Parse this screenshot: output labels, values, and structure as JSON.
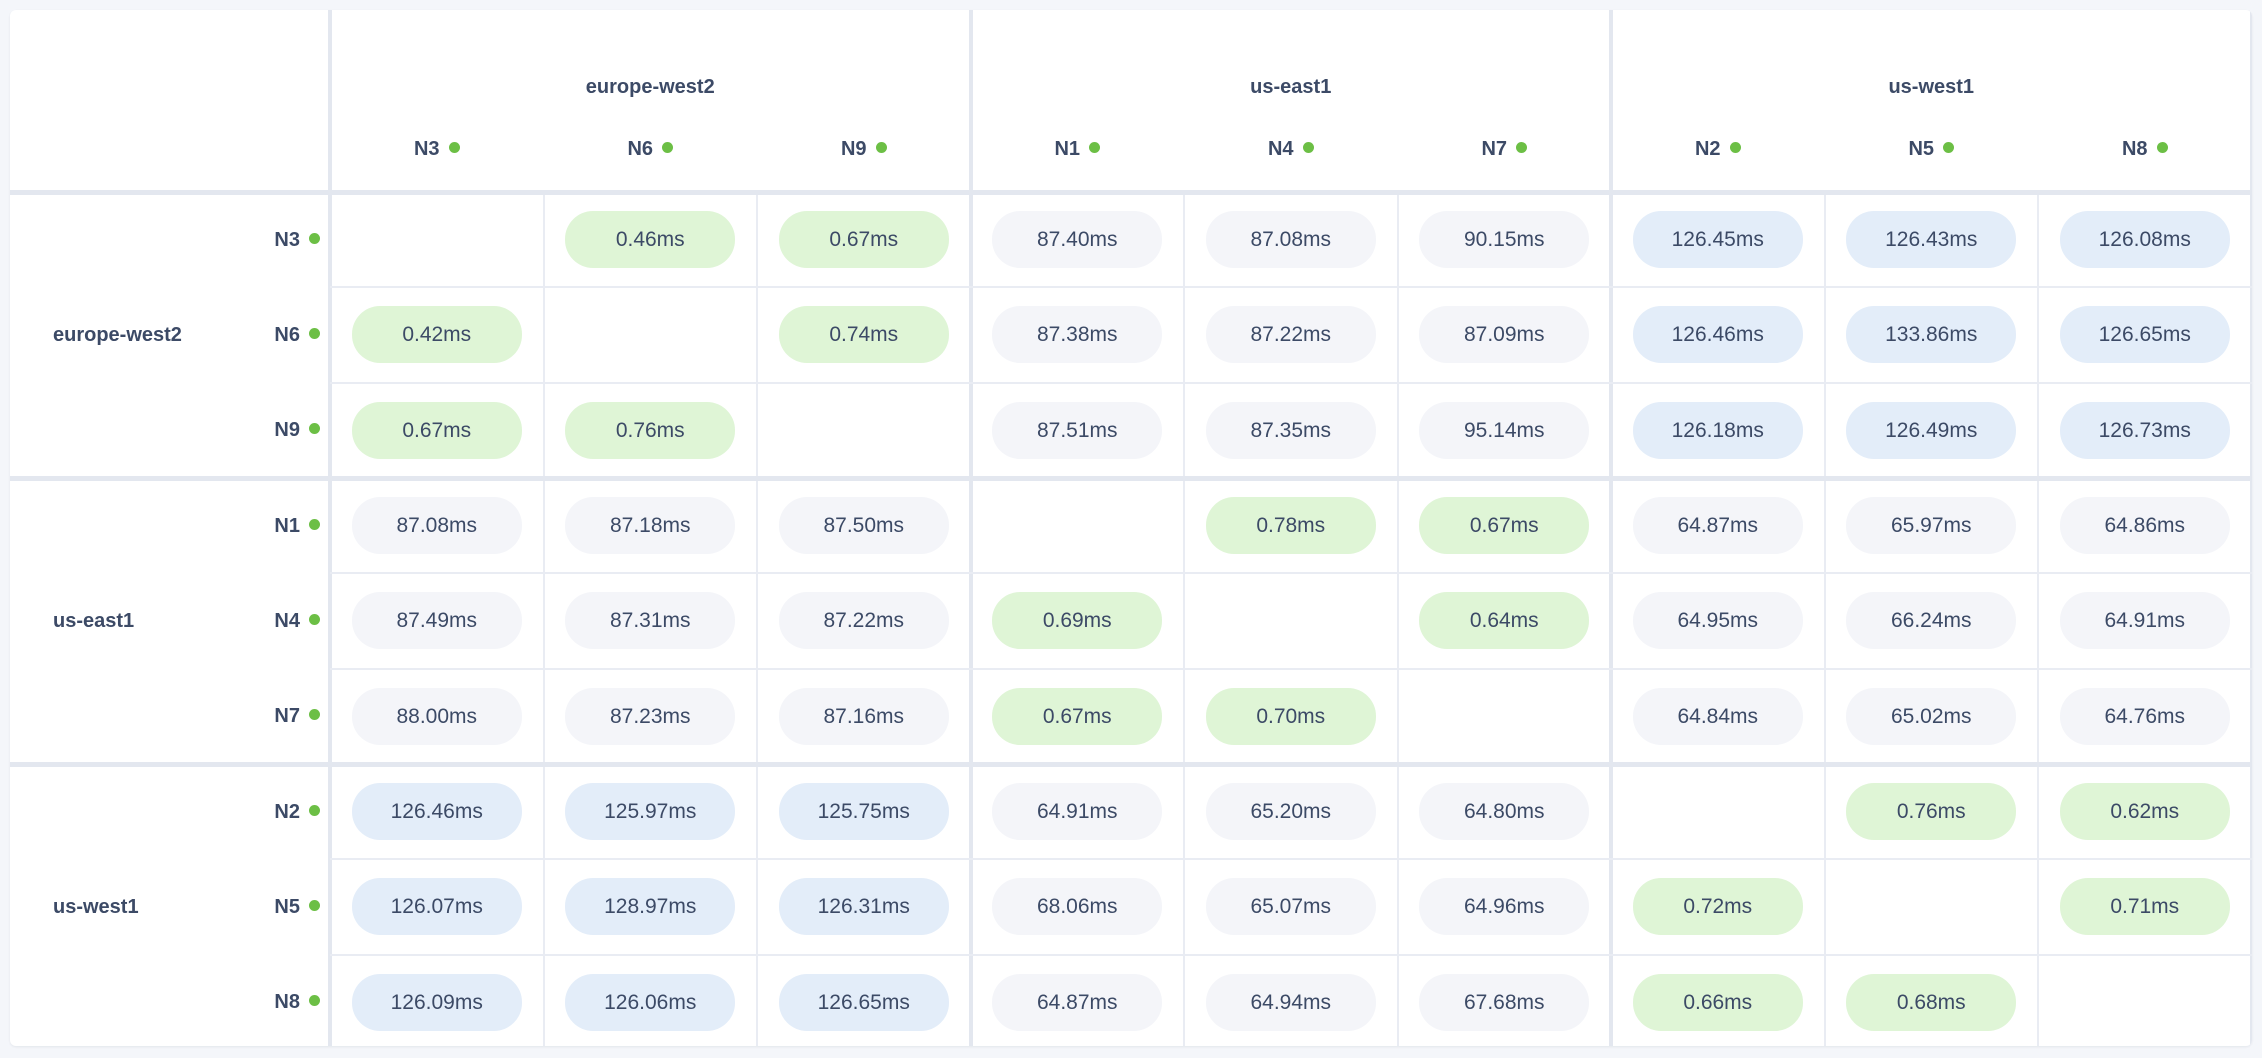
{
  "colors": {
    "status_online": "#6cbf45",
    "intra_region": "#dff5d6",
    "inter_region_mid": "#f4f5f9",
    "inter_region_far": "#e3edf9",
    "text": "#3c4a66"
  },
  "regions": [
    {
      "name": "europe-west2",
      "nodes": [
        "N3",
        "N6",
        "N9"
      ]
    },
    {
      "name": "us-east1",
      "nodes": [
        "N1",
        "N4",
        "N7"
      ]
    },
    {
      "name": "us-west1",
      "nodes": [
        "N2",
        "N5",
        "N8"
      ]
    }
  ],
  "node_status_icon": "green-dot-icon",
  "matrix": [
    [
      "",
      "0.46ms",
      "0.67ms",
      "87.40ms",
      "87.08ms",
      "90.15ms",
      "126.45ms",
      "126.43ms",
      "126.08ms"
    ],
    [
      "0.42ms",
      "",
      "0.74ms",
      "87.38ms",
      "87.22ms",
      "87.09ms",
      "126.46ms",
      "133.86ms",
      "126.65ms"
    ],
    [
      "0.67ms",
      "0.76ms",
      "",
      "87.51ms",
      "87.35ms",
      "95.14ms",
      "126.18ms",
      "126.49ms",
      "126.73ms"
    ],
    [
      "87.08ms",
      "87.18ms",
      "87.50ms",
      "",
      "0.78ms",
      "0.67ms",
      "64.87ms",
      "65.97ms",
      "64.86ms"
    ],
    [
      "87.49ms",
      "87.31ms",
      "87.22ms",
      "0.69ms",
      "",
      "0.64ms",
      "64.95ms",
      "66.24ms",
      "64.91ms"
    ],
    [
      "88.00ms",
      "87.23ms",
      "87.16ms",
      "0.67ms",
      "0.70ms",
      "",
      "64.84ms",
      "65.02ms",
      "64.76ms"
    ],
    [
      "126.46ms",
      "125.97ms",
      "125.75ms",
      "64.91ms",
      "65.20ms",
      "64.80ms",
      "",
      "0.76ms",
      "0.62ms"
    ],
    [
      "126.07ms",
      "128.97ms",
      "126.31ms",
      "68.06ms",
      "65.07ms",
      "64.96ms",
      "0.72ms",
      "",
      "0.71ms"
    ],
    [
      "126.09ms",
      "126.06ms",
      "126.65ms",
      "64.87ms",
      "64.94ms",
      "67.68ms",
      "0.66ms",
      "0.68ms",
      ""
    ]
  ]
}
